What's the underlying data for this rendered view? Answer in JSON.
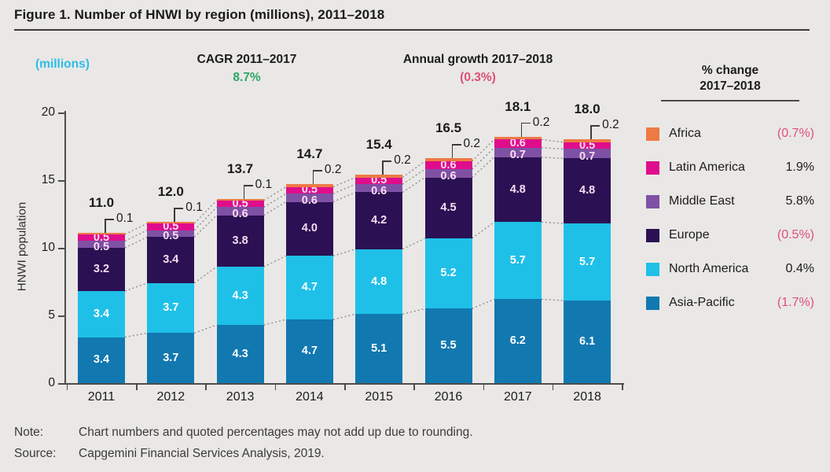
{
  "figure_title": "Figure 1. Number of HNWI by region (millions), 2011–2018",
  "header": {
    "unit_label": "(millions)",
    "cagr_label": "CAGR 2011–2017",
    "cagr_value": "8.7%",
    "growth_label": "Annual growth 2017–2018",
    "growth_value": "(0.3%)"
  },
  "legend": {
    "header_line1": "% change",
    "header_line2": "2017–2018",
    "items": [
      {
        "label": "Africa",
        "value": "(0.7%)",
        "negative": true,
        "color": "#ED7A45"
      },
      {
        "label": "Latin America",
        "value": "1.9%",
        "negative": false,
        "color": "#DF0D8C"
      },
      {
        "label": "Middle East",
        "value": "5.8%",
        "negative": false,
        "color": "#7F51A5"
      },
      {
        "label": "Europe",
        "value": "(0.5%)",
        "negative": true,
        "color": "#2B1153"
      },
      {
        "label": "North America",
        "value": "0.4%",
        "negative": false,
        "color": "#1FC0E8"
      },
      {
        "label": "Asia-Pacific",
        "value": "(1.7%)",
        "negative": true,
        "color": "#1278B0"
      }
    ]
  },
  "chart_data": {
    "type": "bar",
    "stacked": true,
    "title": "Number of HNWI by region (millions), 2011–2018",
    "xlabel": "",
    "ylabel": "HNWI population",
    "ylim": [
      0,
      20
    ],
    "yticks": [
      0,
      5,
      10,
      15,
      20
    ],
    "grid": false,
    "legend_position": "right",
    "categories": [
      "2011",
      "2012",
      "2013",
      "2014",
      "2015",
      "2016",
      "2017",
      "2018"
    ],
    "series": [
      {
        "name": "Asia-Pacific",
        "color": "#1278B0",
        "values": [
          3.4,
          3.7,
          4.3,
          4.7,
          5.1,
          5.5,
          6.2,
          6.1
        ]
      },
      {
        "name": "North America",
        "color": "#1FC0E8",
        "values": [
          3.4,
          3.7,
          4.3,
          4.7,
          4.8,
          5.2,
          5.7,
          5.7
        ]
      },
      {
        "name": "Europe",
        "color": "#2B1153",
        "values": [
          3.2,
          3.4,
          3.8,
          4.0,
          4.2,
          4.5,
          4.8,
          4.8
        ]
      },
      {
        "name": "Middle East",
        "color": "#7F51A5",
        "values": [
          0.5,
          0.5,
          0.6,
          0.6,
          0.6,
          0.6,
          0.7,
          0.7
        ]
      },
      {
        "name": "Latin America",
        "color": "#DF0D8C",
        "values": [
          0.5,
          0.5,
          0.5,
          0.5,
          0.5,
          0.6,
          0.6,
          0.5
        ]
      },
      {
        "name": "Africa",
        "color": "#ED7A45",
        "values": [
          0.1,
          0.1,
          0.1,
          0.2,
          0.2,
          0.2,
          0.2,
          0.2
        ]
      }
    ],
    "bar_totals": [
      "11.0",
      "12.0",
      "13.7",
      "14.7",
      "15.4",
      "16.5",
      "18.1",
      "18.0"
    ],
    "africa_callouts": [
      "0.1",
      "0.1",
      "0.1",
      "0.2",
      "0.2",
      "0.2",
      "0.2",
      "0.2"
    ]
  },
  "footer": {
    "note_label": "Note:",
    "note_text": "Chart numbers and quoted percentages may not add up due to rounding.",
    "source_label": "Source:",
    "source_text": "Capgemini Financial Services Analysis, 2019."
  },
  "colors": {
    "positive_green": "#2EA866",
    "negative_pink": "#DE5077",
    "unit_cyan": "#2BBDE9",
    "background": "#E9E8E6",
    "axis": "#4D4D4C"
  }
}
